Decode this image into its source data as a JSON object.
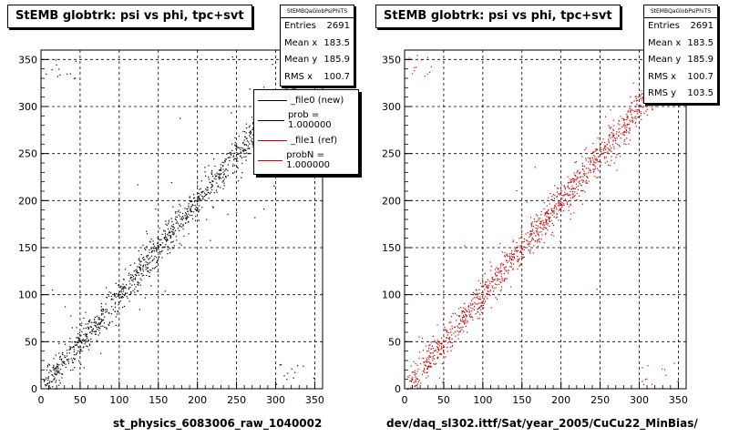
{
  "panels": [
    {
      "id": "left",
      "title": "StEMB globtrk: psi vs phi, tpc+svt",
      "stats_header": "StEMBQaGlobPsiPhiTS",
      "stats": [
        {
          "label": "Entries",
          "value": "2691"
        },
        {
          "label": "Mean x",
          "value": "183.5"
        },
        {
          "label": "Mean y",
          "value": "185.9"
        },
        {
          "label": "RMS x",
          "value": "100.7"
        }
      ],
      "legend": [
        {
          "label": "_file0 (new)",
          "color": "#000000"
        },
        {
          "label": "prob = 1.000000",
          "color": "#000000"
        },
        {
          "label": "_file1 (ref)",
          "color": "#cc0000"
        },
        {
          "label": "probN = 1.000000",
          "color": "#cc0000"
        }
      ],
      "xcaption": "st_physics_6083006_raw_1040002",
      "marker_color": "#000000"
    },
    {
      "id": "right",
      "title": "StEMB globtrk: psi vs phi, tpc+svt",
      "stats_header": "StEMBQaGlobPsiPhiTS",
      "stats": [
        {
          "label": "Entries",
          "value": "2691"
        },
        {
          "label": "Mean x",
          "value": "183.5"
        },
        {
          "label": "Mean y",
          "value": "185.9"
        },
        {
          "label": "RMS x",
          "value": "100.7"
        },
        {
          "label": "RMS y",
          "value": "103.5"
        }
      ],
      "legend": [],
      "xcaption": "dev/daq_sl302.ittf/Sat/year_2005/CuCu22_MinBias/",
      "marker_color": "#cc0000"
    }
  ],
  "chart_data": [
    {
      "type": "scatter",
      "title": "StEMB globtrk: psi vs phi, tpc+svt",
      "xlabel": "st_physics_6083006_raw_1040002",
      "ylabel": "",
      "xlim": [
        0,
        360
      ],
      "ylim": [
        0,
        360
      ],
      "xticks": [
        0,
        50,
        100,
        150,
        200,
        250,
        300,
        350
      ],
      "yticks": [
        0,
        50,
        100,
        150,
        200,
        250,
        300,
        350
      ],
      "grid": true,
      "series": [
        {
          "name": "_file0 (new)",
          "color": "#000000",
          "distribution": "dense diagonal band y≈x, spread about ±15",
          "entries": 2691,
          "mean_x": 183.5,
          "mean_y": 185.9,
          "rms_x": 100.7
        }
      ]
    },
    {
      "type": "scatter",
      "title": "StEMB globtrk: psi vs phi, tpc+svt",
      "xlabel": "dev/daq_sl302.ittf/Sat/year_2005/CuCu22_MinBias/",
      "ylabel": "",
      "xlim": [
        0,
        360
      ],
      "ylim": [
        0,
        360
      ],
      "xticks": [
        0,
        50,
        100,
        150,
        200,
        250,
        300,
        350
      ],
      "yticks": [
        0,
        50,
        100,
        150,
        200,
        250,
        300,
        350
      ],
      "grid": true,
      "series": [
        {
          "name": "_file1 (ref)",
          "color": "#cc0000",
          "distribution": "dense diagonal band y≈x, spread about ±15",
          "entries": 2691,
          "mean_x": 183.5,
          "mean_y": 185.9,
          "rms_x": 100.7,
          "rms_y": 103.5
        }
      ]
    }
  ]
}
